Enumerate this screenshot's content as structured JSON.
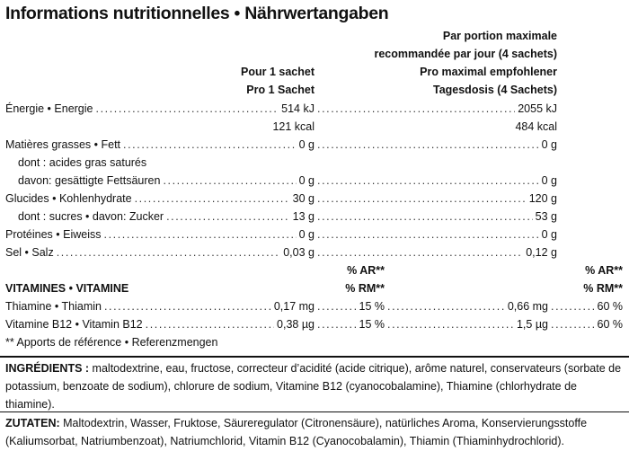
{
  "title": "Informations nutritionnelles • Nährwertangaben",
  "columns": {
    "per_sachet": [
      "Pour 1 sachet",
      "Pro 1 Sachet"
    ],
    "per_day": [
      "Par portion maximale",
      "recommandée par jour (4 sachets)",
      "Pro maximal empfohlener",
      "Tagesdosis (4 Sachets)"
    ]
  },
  "nutrients": [
    {
      "label": "Énergie • Energie",
      "per_sachet": "514 kJ",
      "per_day": "2055 kJ"
    },
    {
      "per_sachet": "121 kcal",
      "per_day": "484 kcal"
    },
    {
      "label": "Matières grasses • Fett",
      "per_sachet": "0 g",
      "per_day": "0 g"
    },
    {
      "label": "dont : acides gras saturés"
    },
    {
      "label": "davon: gesättigte Fettsäuren",
      "per_sachet": "0 g",
      "per_day": "0 g"
    },
    {
      "label": "Glucides • Kohlenhydrate",
      "per_sachet": "30 g",
      "per_day": "120 g"
    },
    {
      "label": "dont : sucres • davon: Zucker",
      "per_sachet": "13 g",
      "per_day": "53 g"
    },
    {
      "label": "Protéines • Eiweiss",
      "per_sachet": "0 g",
      "per_day": "0 g"
    },
    {
      "label": "Sel • Salz",
      "per_sachet": "0,03 g",
      "per_day": "0,12 g"
    }
  ],
  "vitamins": {
    "header": {
      "ar": "% AR**",
      "rm": "% RM**"
    },
    "title": "VITAMINES • VITAMINE",
    "rows": [
      {
        "label": "Thiamine • Thiamin",
        "per_sachet": "0,17 mg",
        "per_sachet_pct": "15 %",
        "per_day": "0,66 mg",
        "per_day_pct": "60 %"
      },
      {
        "label": "Vitamine B12 • Vitamin B12",
        "per_sachet": "0,38 µg",
        "per_sachet_pct": "15 %",
        "per_day": "1,5 µg",
        "per_day_pct": "60 %"
      }
    ]
  },
  "footnote": "** Apports de référence • Referenzmengen",
  "ingredients": {
    "label": "INGRÉDIENTS :",
    "text": "maltodextrine, eau, fructose, correcteur d’acidité (acide citrique), arôme naturel, conservateurs (sorbate de potassium, benzoate de sodium), chlorure de sodium, Vitamine B12 (cyanocobalamine), Thiamine (chlorhydrate de thiamine)."
  },
  "zutaten": {
    "label": "ZUTATEN:",
    "text": "Maltodextrin, Wasser, Fruktose, Säureregulator (Citronensäure), natürliches Aroma, Konservierungsstoffe (Kaliumsorbat, Natriumbenzoat), Natriumchlorid, Vitamin B12 (Cyanocobalamin), Thiamin (Thiaminhydrochlorid)."
  }
}
